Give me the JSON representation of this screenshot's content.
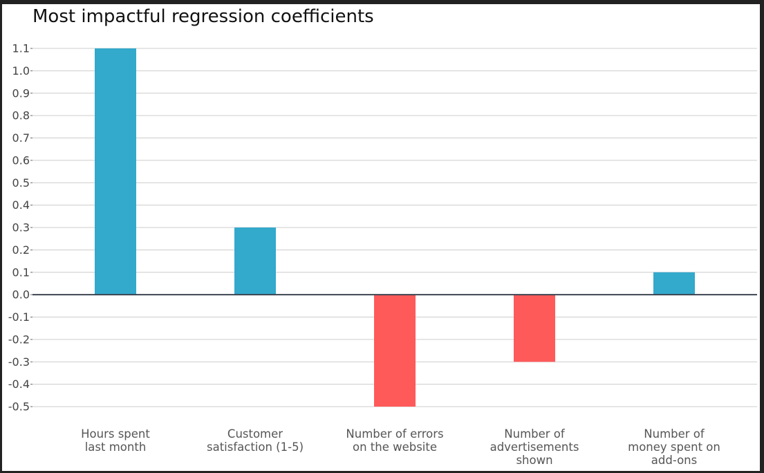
{
  "chart_data": {
    "type": "bar",
    "title": "Most impactful regression coefficients",
    "xlabel": "",
    "ylabel": "",
    "categories": [
      [
        "Hours spent",
        "last month"
      ],
      [
        "Customer",
        "satisfaction (1-5)"
      ],
      [
        "Number of errors",
        "on the website"
      ],
      [
        "Number of",
        "advertisements",
        "shown"
      ],
      [
        "Number of",
        "money spent on",
        "add-ons"
      ]
    ],
    "values": [
      1.1,
      0.3,
      -0.5,
      -0.3,
      0.1
    ],
    "ylim": [
      -0.5,
      1.1
    ],
    "yticks": [
      "1.1",
      "1.0",
      "0.9",
      "0.8",
      "0.7",
      "0.6",
      "0.5",
      "0.4",
      "0.3",
      "0.2",
      "0.1",
      "0.0",
      "-0.1",
      "-0.2",
      "-0.3",
      "-0.4",
      "-0.5"
    ],
    "grid": true,
    "legend": "none",
    "colors": {
      "positive": "#33a9cc",
      "negative": "#ff5a5a"
    }
  }
}
